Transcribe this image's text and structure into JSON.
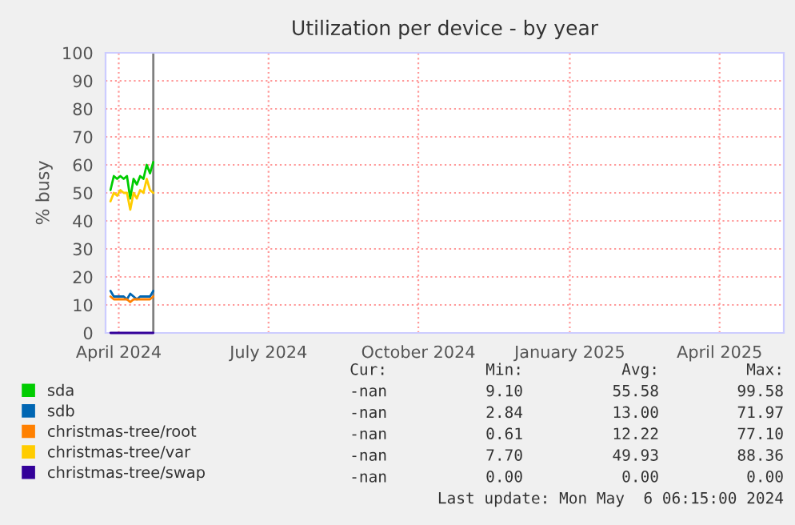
{
  "chart_data": {
    "type": "line",
    "title": "Utilization per device - by year",
    "ylabel": "% busy",
    "x": [
      "2024-04-10",
      "2024-04-12",
      "2024-04-14",
      "2024-04-16",
      "2024-04-18",
      "2024-04-20",
      "2024-04-22",
      "2024-04-24",
      "2024-04-26",
      "2024-04-28",
      "2024-04-30",
      "2024-05-02",
      "2024-05-04",
      "2024-05-06"
    ],
    "series": [
      {
        "name": "sda",
        "color": "#00cc00",
        "values": [
          51,
          56,
          55,
          56,
          55,
          56,
          48,
          55,
          53,
          56,
          55,
          60,
          57,
          61
        ]
      },
      {
        "name": "sdb",
        "color": "#0066b3",
        "values": [
          15,
          13,
          13,
          13,
          13,
          12,
          14,
          13,
          12,
          13,
          13,
          13,
          13,
          15
        ]
      },
      {
        "name": "christmas-tree/root",
        "color": "#ff8000",
        "values": [
          13,
          12,
          12,
          12,
          12,
          12,
          11,
          12,
          12,
          12,
          12,
          12,
          12,
          13
        ]
      },
      {
        "name": "christmas-tree/var",
        "color": "#ffcc00",
        "values": [
          47,
          50,
          49,
          51,
          50,
          50,
          44,
          50,
          48,
          51,
          50,
          55,
          51,
          50
        ]
      },
      {
        "name": "christmas-tree/swap",
        "color": "#330099",
        "values": [
          0,
          0,
          0,
          0,
          0,
          0,
          0,
          0,
          0,
          0,
          0,
          0,
          0,
          0
        ]
      }
    ],
    "xlim": [
      "2024-04-07",
      "2025-05-24"
    ],
    "xticks": [
      {
        "value": "2024-04-15",
        "label": "April 2024"
      },
      {
        "value": "2024-07-15",
        "label": "July 2024"
      },
      {
        "value": "2024-10-14",
        "label": "October 2024"
      },
      {
        "value": "2025-01-14",
        "label": "January 2025"
      },
      {
        "value": "2025-04-15",
        "label": "April 2025"
      }
    ],
    "ylim": [
      0,
      100
    ],
    "yticks": [
      0,
      10,
      20,
      30,
      40,
      50,
      60,
      70,
      80,
      90,
      100
    ],
    "ref_lines": [
      {
        "axis": "x",
        "value": "2024-05-06",
        "label": null,
        "color": "#808080"
      }
    ],
    "grid": true,
    "legend": "bottom",
    "marker": "none",
    "line_style": "solid",
    "annotations": [
      "Cur:",
      "Min:",
      "Avg:",
      "Max:",
      "-nan",
      "9.10",
      "55.58",
      "99.58",
      "-nan",
      "2.84",
      "13.00",
      "71.97",
      "-nan",
      "0.61",
      "12.22",
      "77.10",
      "-nan",
      "7.70",
      "49.93",
      "88.36",
      "-nan",
      "0.00",
      "0.00",
      "0.00",
      "Last update: Mon May  6 06:15:00 2024"
    ]
  }
}
